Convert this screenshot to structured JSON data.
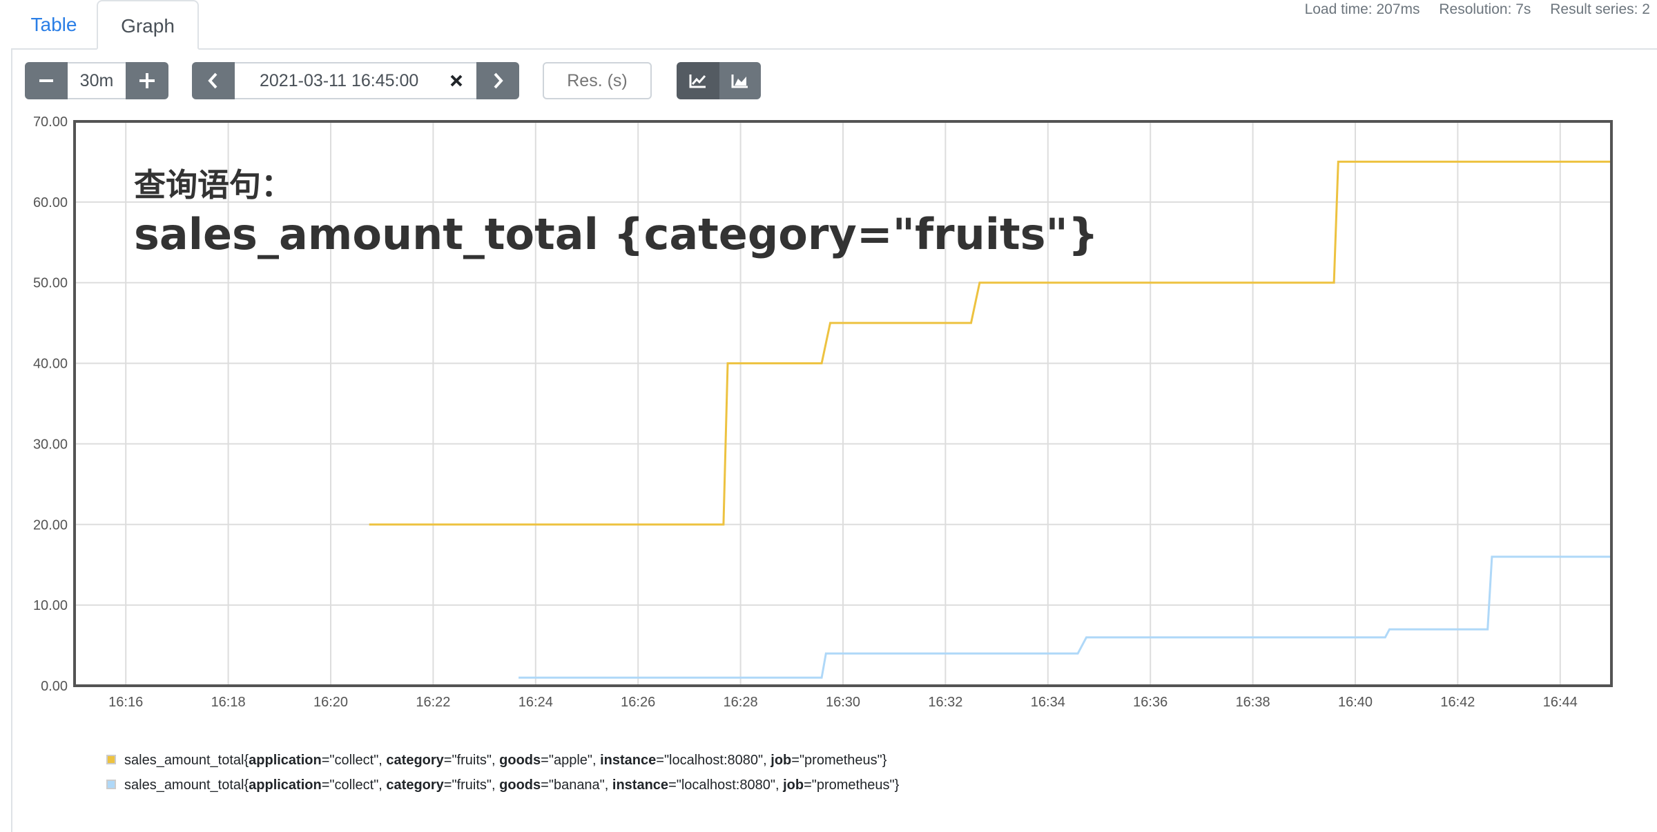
{
  "tabs": [
    {
      "label": "Table"
    },
    {
      "label": "Graph"
    }
  ],
  "stats": {
    "load_time": "Load time: 207ms",
    "resolution": "Resolution: 7s",
    "result_series": "Result series: 2"
  },
  "controls": {
    "range_value": "30m",
    "end_time": "2021-03-11 16:45:00",
    "resolution_placeholder": "Res. (s)"
  },
  "overlay": {
    "line1": "查询语句：",
    "line2": "sales_amount_total {category=\"fruits\"}"
  },
  "icons": {
    "minus": "minus-icon",
    "plus": "plus-icon",
    "prev": "chevron-left-icon",
    "next": "chevron-right-icon",
    "clear": "close-icon",
    "line_chart": "line-chart-icon",
    "area_chart": "area-chart-icon"
  },
  "legend": [
    {
      "prefix": "sales_amount_total{",
      "labels": [
        {
          "key": "application",
          "value": "\"collect\""
        },
        {
          "key": "category",
          "value": "\"fruits\""
        },
        {
          "key": "goods",
          "value": "\"apple\""
        },
        {
          "key": "instance",
          "value": "\"localhost:8080\""
        },
        {
          "key": "job",
          "value": "\"prometheus\""
        }
      ],
      "suffix": "}"
    },
    {
      "prefix": "sales_amount_total{",
      "labels": [
        {
          "key": "application",
          "value": "\"collect\""
        },
        {
          "key": "category",
          "value": "\"fruits\""
        },
        {
          "key": "goods",
          "value": "\"banana\""
        },
        {
          "key": "instance",
          "value": "\"localhost:8080\""
        },
        {
          "key": "job",
          "value": "\"prometheus\""
        }
      ],
      "suffix": "}"
    }
  ],
  "chart_data": {
    "type": "line",
    "step": true,
    "x_axis": {
      "min": "16:15:00",
      "max": "16:45:00",
      "ticks": [
        "16:16",
        "16:18",
        "16:20",
        "16:22",
        "16:24",
        "16:26",
        "16:28",
        "16:30",
        "16:32",
        "16:34",
        "16:36",
        "16:38",
        "16:40",
        "16:42",
        "16:44"
      ]
    },
    "y_axis": {
      "min": 0,
      "max": 70,
      "ticks": [
        "0.00",
        "10.00",
        "20.00",
        "30.00",
        "40.00",
        "50.00",
        "60.00",
        "70.00"
      ]
    },
    "grid": true,
    "series": [
      {
        "color": "#edc240",
        "points": [
          [
            "16:20:45",
            20
          ],
          [
            "16:27:40",
            20
          ],
          [
            "16:27:45",
            40
          ],
          [
            "16:29:35",
            40
          ],
          [
            "16:29:45",
            45
          ],
          [
            "16:32:30",
            45
          ],
          [
            "16:32:40",
            50
          ],
          [
            "16:39:35",
            50
          ],
          [
            "16:39:40",
            65
          ],
          [
            "16:45:00",
            65
          ]
        ]
      },
      {
        "color": "#afd8f8",
        "points": [
          [
            "16:23:40",
            1
          ],
          [
            "16:29:35",
            1
          ],
          [
            "16:29:40",
            4
          ],
          [
            "16:34:35",
            4
          ],
          [
            "16:34:45",
            6
          ],
          [
            "16:40:35",
            6
          ],
          [
            "16:40:40",
            7
          ],
          [
            "16:42:35",
            7
          ],
          [
            "16:42:40",
            16
          ],
          [
            "16:45:00",
            16
          ]
        ]
      }
    ]
  }
}
